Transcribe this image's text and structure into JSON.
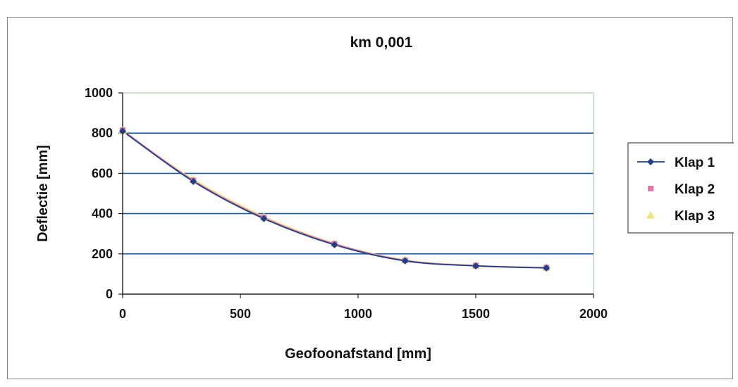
{
  "chart_data": {
    "type": "line",
    "title": "km 0,001",
    "xlabel": "Geofoonafstand [mm]",
    "ylabel": "Deflectie [mm]",
    "xlim": [
      0,
      2000
    ],
    "ylim": [
      0,
      1000
    ],
    "xticks": [
      "0",
      "500",
      "1000",
      "1500",
      "2000"
    ],
    "yticks": [
      "0",
      "200",
      "400",
      "600",
      "800",
      "1000"
    ],
    "x": [
      0,
      300,
      600,
      900,
      1200,
      1500,
      1800
    ],
    "series": [
      {
        "name": "Klap 1",
        "values": [
          810,
          560,
          375,
          245,
          165,
          140,
          130
        ],
        "color": "#1f3f8f",
        "marker": "diamond"
      },
      {
        "name": "Klap 2",
        "values": [
          815,
          565,
          380,
          250,
          168,
          142,
          132
        ],
        "color": "#e0609a",
        "marker": "square"
      },
      {
        "name": "Klap 3",
        "values": [
          812,
          570,
          385,
          252,
          170,
          143,
          133
        ],
        "color": "#f0e060",
        "marker": "triangle"
      }
    ],
    "grid": "horizontal",
    "gridline_color": "#1c5fa8",
    "legend_position": "right"
  }
}
